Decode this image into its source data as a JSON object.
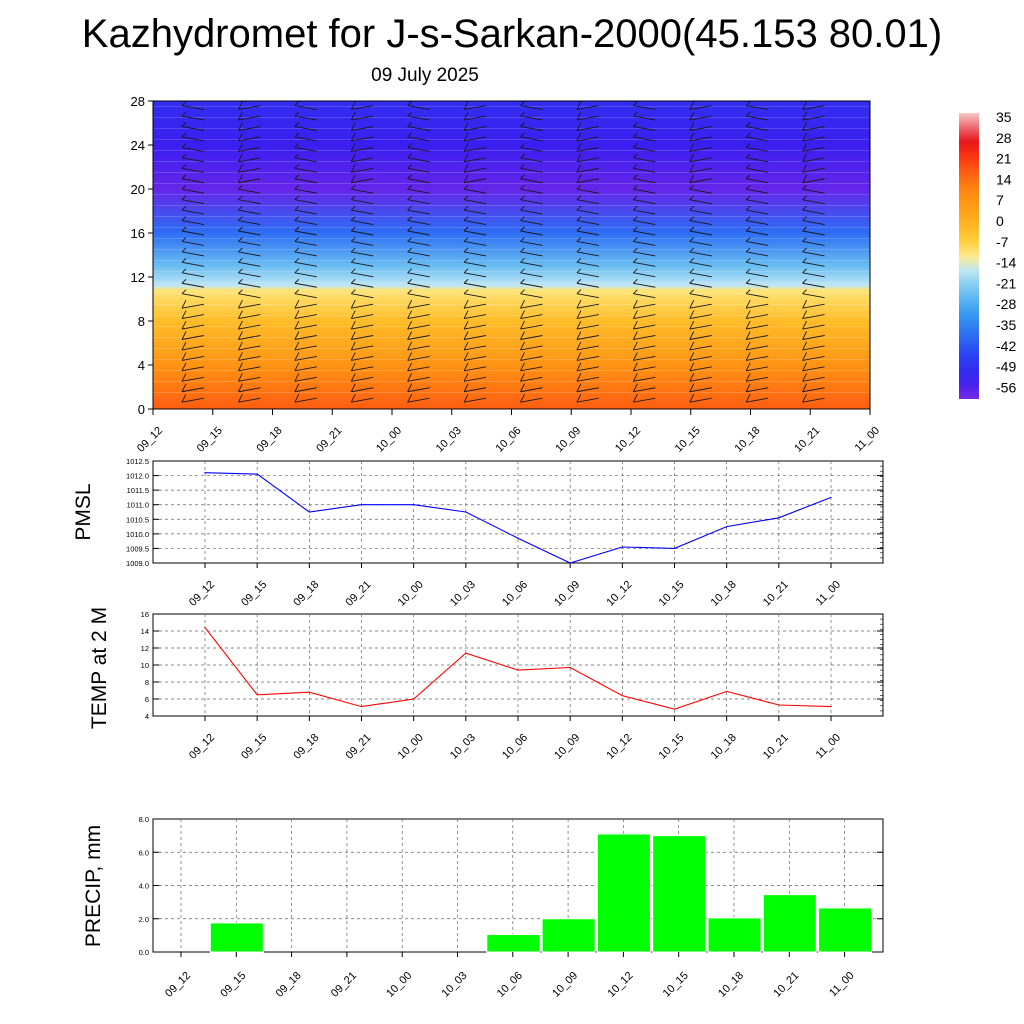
{
  "title": "Kazhydromet for J-s-Sarkan-2000(45.153 80.01)",
  "subtitle": "09 July 2025",
  "chart_data": [
    {
      "type": "heatmap",
      "description_ref": "temperature profile with wind barbs",
      "x_categories": [
        "09_12",
        "09_15",
        "09_18",
        "09_21",
        "10_00",
        "10_03",
        "10_06",
        "10_09",
        "10_12",
        "10_15",
        "10_18",
        "10_21",
        "11_00"
      ],
      "y_ticks": [
        0,
        4,
        8,
        12,
        16,
        20,
        24,
        28
      ],
      "ylim": [
        0,
        28
      ],
      "colorbar": {
        "labels": [
          "35",
          "28",
          "21",
          "14",
          "7",
          "0",
          "-7",
          "-14",
          "-21",
          "-28",
          "-35",
          "-42",
          "-49",
          "-56"
        ],
        "range": [
          -60,
          38
        ]
      },
      "profile": [
        {
          "y": 0,
          "t": 18
        },
        {
          "y": 4,
          "t": 8
        },
        {
          "y": 8,
          "t": -2
        },
        {
          "y": 10.8,
          "t": -10
        },
        {
          "y": 11.2,
          "t": -16
        },
        {
          "y": 13,
          "t": -24
        },
        {
          "y": 16,
          "t": -38
        },
        {
          "y": 20,
          "t": -58
        },
        {
          "y": 24,
          "t": -54
        },
        {
          "y": 28,
          "t": -50
        }
      ]
    },
    {
      "type": "line",
      "ylabel": "PMSL",
      "categories": [
        "09_12",
        "09_15",
        "09_18",
        "09_21",
        "10_00",
        "10_03",
        "10_06",
        "10_09",
        "10_12",
        "10_15",
        "10_18",
        "10_21",
        "11_00"
      ],
      "values": [
        1012.1,
        1012.05,
        1010.75,
        1011.0,
        1011.0,
        1010.75,
        1009.85,
        1009.0,
        1009.55,
        1009.5,
        1010.25,
        1010.55,
        1011.25
      ],
      "ylim": [
        1009.0,
        1012.5
      ],
      "y_ticks": [
        "1009.0",
        "1009.5",
        "1010.0",
        "1010.5",
        "1011.0",
        "1011.5",
        "1012.0",
        "1012.5"
      ],
      "color": "#0000ff"
    },
    {
      "type": "line",
      "ylabel": "TEMP at 2 M",
      "categories": [
        "09_12",
        "09_15",
        "09_18",
        "09_21",
        "10_00",
        "10_03",
        "10_06",
        "10_09",
        "10_12",
        "10_15",
        "10_18",
        "10_21",
        "11_00"
      ],
      "values": [
        14.4,
        6.5,
        6.8,
        5.1,
        6.0,
        11.4,
        9.4,
        9.7,
        6.4,
        4.8,
        6.9,
        5.3,
        5.1
      ],
      "ylim": [
        4,
        16
      ],
      "y_ticks": [
        "4",
        "6",
        "8",
        "10",
        "12",
        "14",
        "16"
      ],
      "color": "#ff0000"
    },
    {
      "type": "bar",
      "ylabel": "PRECIP, mm",
      "categories": [
        "09_12",
        "09_15",
        "09_18",
        "09_21",
        "10_00",
        "10_03",
        "10_06",
        "10_09",
        "10_12",
        "10_15",
        "10_18",
        "10_21",
        "11_00"
      ],
      "values": [
        0,
        1.75,
        0,
        0,
        0,
        0,
        1.05,
        2.0,
        7.1,
        7.0,
        2.05,
        3.45,
        2.65
      ],
      "ylim": [
        0,
        8
      ],
      "y_ticks": [
        "0.0",
        "2.0",
        "4.0",
        "6.0",
        "8.0"
      ],
      "color": "#00ff00"
    }
  ]
}
